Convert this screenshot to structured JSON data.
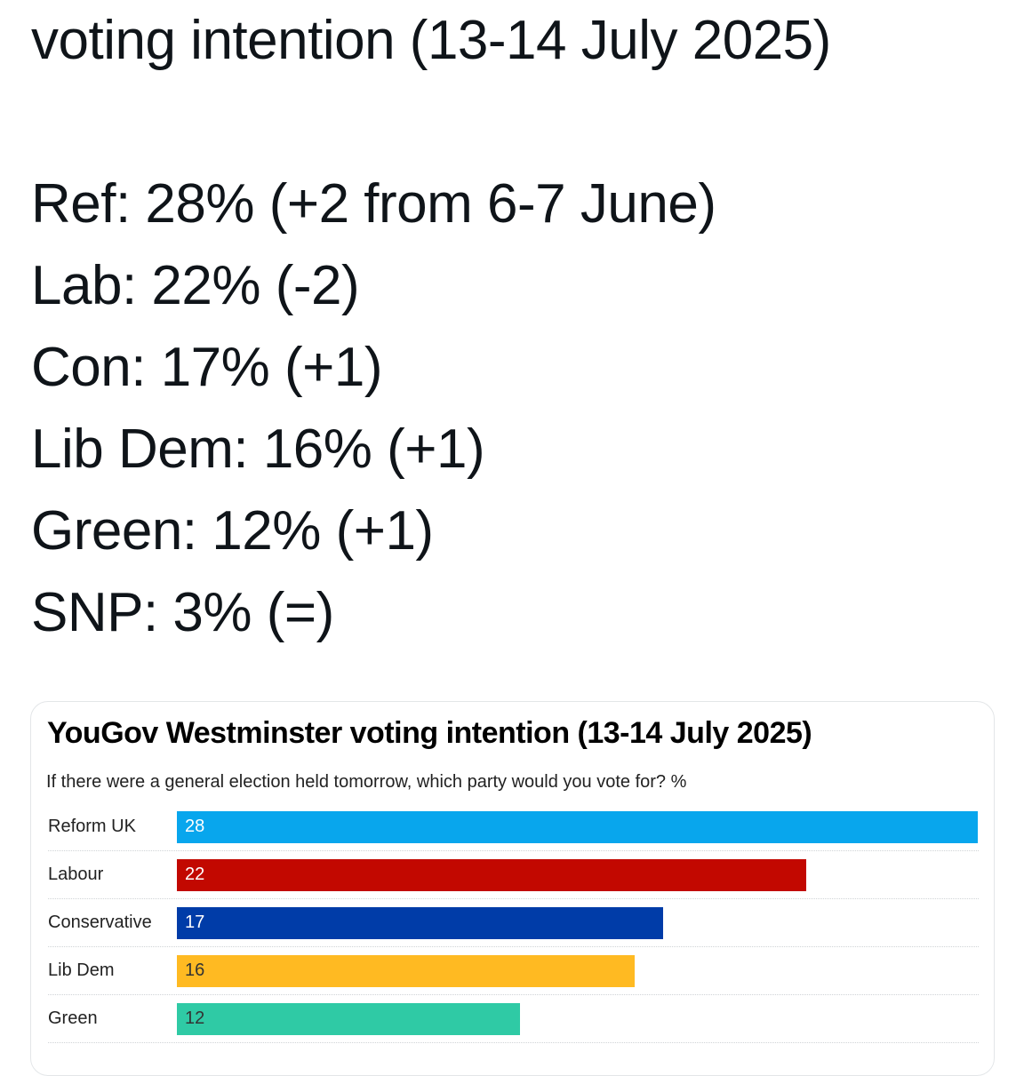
{
  "tweet": {
    "title_tail": "voting intention (13-14 July 2025)",
    "results": [
      {
        "text": "Ref: 28% (+2 from 6-7 June)"
      },
      {
        "text": "Lab: 22% (-2)"
      },
      {
        "text": "Con: 17% (+1)"
      },
      {
        "text": "Lib Dem: 16% (+1)"
      },
      {
        "text": "Green: 12% (+1)"
      },
      {
        "text": "SNP: 3% (=)"
      }
    ]
  },
  "card": {
    "title": "YouGov Westminster voting intention (13-14 July 2025)",
    "subtitle": "If there were a general election held tomorrow, which party would you vote for? %"
  },
  "chart_data": {
    "type": "bar",
    "orientation": "horizontal",
    "title": "YouGov Westminster voting intention (13-14 July 2025)",
    "subtitle": "If there were a general election held tomorrow, which party would you vote for? %",
    "xlabel": "",
    "ylabel": "",
    "unit": "%",
    "categories": [
      "Reform UK",
      "Labour",
      "Conservative",
      "Lib Dem",
      "Green"
    ],
    "values": [
      28,
      22,
      17,
      16,
      12
    ],
    "colors": [
      "#08a6ed",
      "#c20800",
      "#003ca8",
      "#ffba22",
      "#2fcaa5"
    ],
    "value_label_colors": [
      "#ffffff",
      "#ffffff",
      "#ffffff",
      "#333333",
      "#333333"
    ],
    "xlim": [
      0,
      28
    ],
    "grid": false,
    "legend": "none"
  }
}
